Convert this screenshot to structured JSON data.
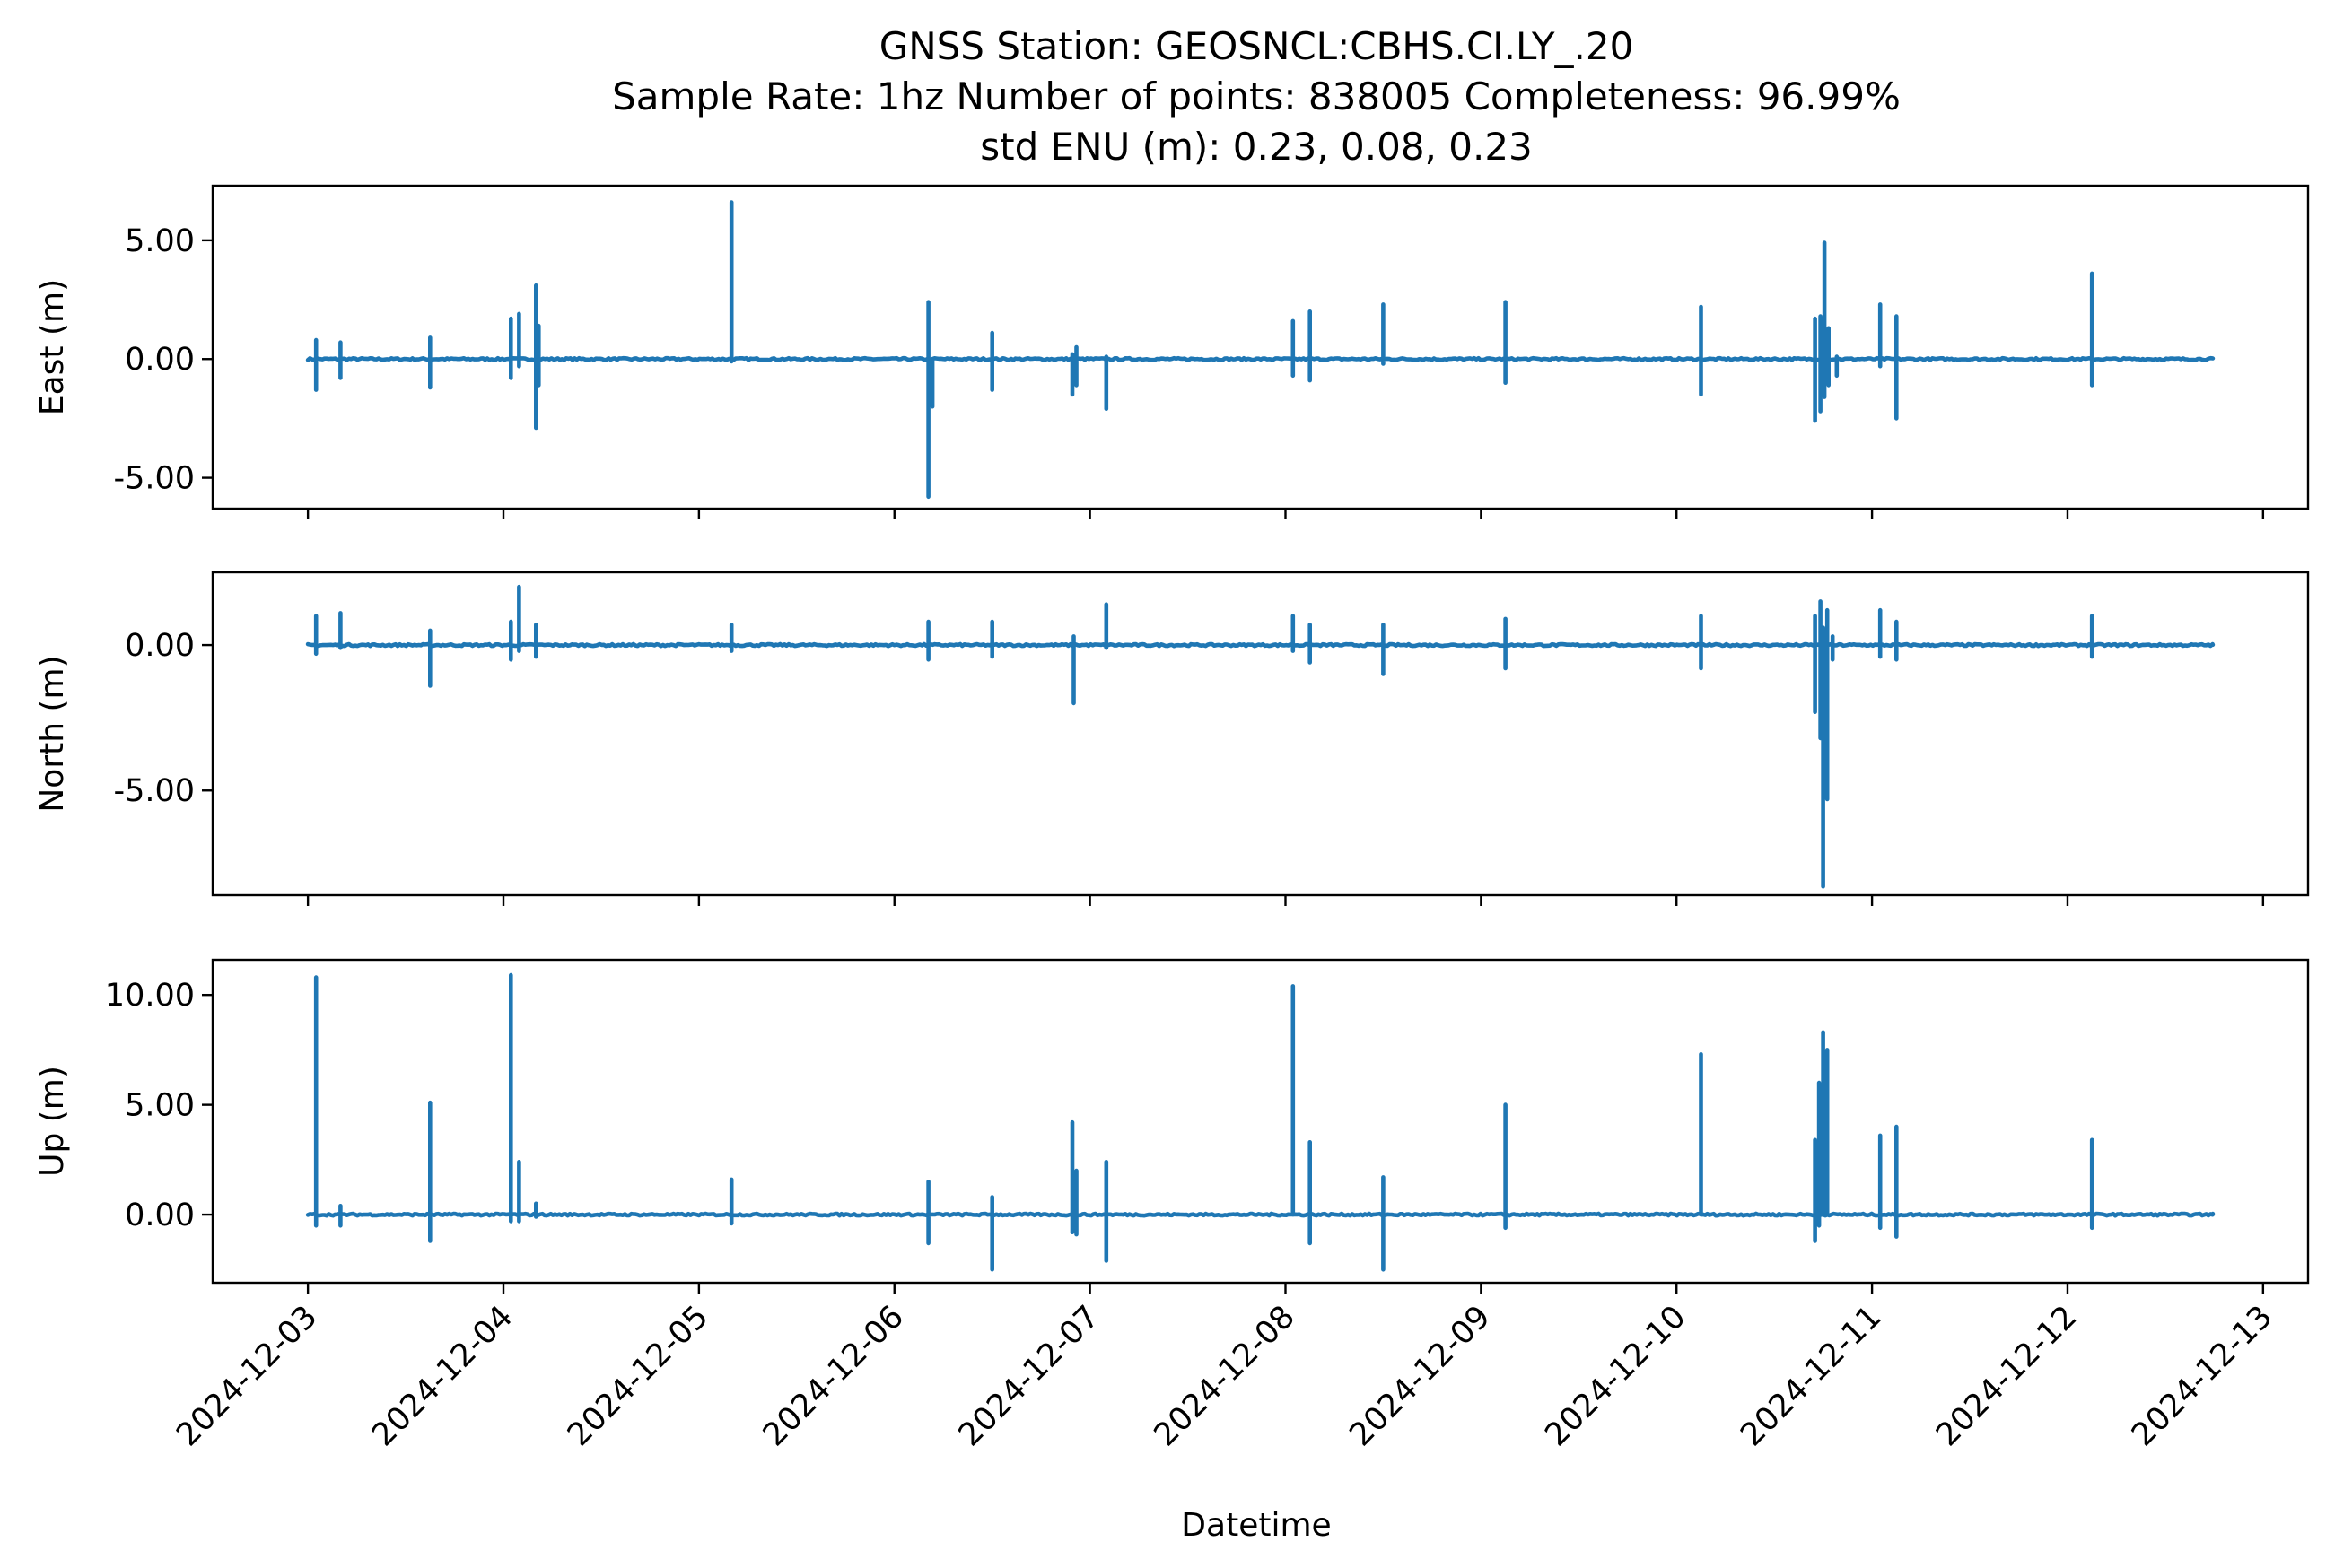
{
  "chart_data": {
    "type": "line",
    "title": [
      "GNSS Station: GEOSNCL:CBHS.CI.LY_.20",
      "Sample Rate: 1hz   Number of points: 838005    Completeness:  96.99%",
      "std ENU (m):  0.23, 0.08, 0.23"
    ],
    "xlabel": "Datetime",
    "x_range": [
      "2024-12-03",
      "2024-12-13"
    ],
    "x_ticks": [
      "2024-12-03",
      "2024-12-04",
      "2024-12-05",
      "2024-12-06",
      "2024-12-07",
      "2024-12-08",
      "2024-12-09",
      "2024-12-10",
      "2024-12-11",
      "2024-12-12",
      "2024-12-13"
    ],
    "data_x_range": [
      "2024-12-03T00:00",
      "2024-12-12T17:50"
    ],
    "grid": false,
    "line_color": "#1f77b4",
    "subplots": [
      {
        "ylabel": "East (m)",
        "ylim": [
          -6.3,
          7.3
        ],
        "y_ticks": [
          5,
          0,
          -5
        ],
        "y_tick_labels": [
          "5.00",
          "0.00",
          "-5.00"
        ],
        "spikes": [
          {
            "t": "2024-12-03T01:00",
            "min": -1.3,
            "max": 0.8
          },
          {
            "t": "2024-12-03T04:00",
            "min": -0.8,
            "max": 0.7
          },
          {
            "t": "2024-12-03T15:00",
            "min": -1.2,
            "max": 0.9
          },
          {
            "t": "2024-12-04T00:55",
            "min": -0.8,
            "max": 1.7
          },
          {
            "t": "2024-12-04T01:55",
            "min": -0.3,
            "max": 1.9
          },
          {
            "t": "2024-12-04T04:00",
            "min": -2.9,
            "max": 3.1
          },
          {
            "t": "2024-12-04T04:20",
            "min": -1.1,
            "max": 1.4
          },
          {
            "t": "2024-12-05T04:00",
            "min": -0.1,
            "max": 6.6
          },
          {
            "t": "2024-12-06T04:10",
            "min": -5.8,
            "max": 2.4
          },
          {
            "t": "2024-12-06T04:40",
            "min": -2.0,
            "max": -0.2
          },
          {
            "t": "2024-12-06T12:00",
            "min": -1.3,
            "max": 1.1
          },
          {
            "t": "2024-12-06T21:50",
            "min": -1.5,
            "max": 0.2
          },
          {
            "t": "2024-12-06T22:20",
            "min": -1.1,
            "max": 0.5
          },
          {
            "t": "2024-12-07T02:00",
            "min": -2.1,
            "max": 0.1
          },
          {
            "t": "2024-12-08T00:55",
            "min": -0.7,
            "max": 1.6
          },
          {
            "t": "2024-12-08T03:00",
            "min": -0.9,
            "max": 2.0
          },
          {
            "t": "2024-12-08T12:00",
            "min": -0.2,
            "max": 2.3
          },
          {
            "t": "2024-12-09T03:00",
            "min": -1.0,
            "max": 2.4
          },
          {
            "t": "2024-12-10T03:00",
            "min": -1.5,
            "max": 2.2
          },
          {
            "t": "2024-12-10T17:00",
            "min": -2.6,
            "max": 1.7
          },
          {
            "t": "2024-12-10T17:40",
            "min": -2.2,
            "max": 1.8
          },
          {
            "t": "2024-12-10T18:10",
            "min": -1.6,
            "max": 4.9
          },
          {
            "t": "2024-12-10T18:40",
            "min": -1.1,
            "max": 1.3
          },
          {
            "t": "2024-12-10T19:40",
            "min": -0.7,
            "max": 0.1
          },
          {
            "t": "2024-12-11T01:00",
            "min": -0.3,
            "max": 2.3
          },
          {
            "t": "2024-12-11T03:00",
            "min": -2.5,
            "max": 1.8
          },
          {
            "t": "2024-12-12T03:00",
            "min": -1.1,
            "max": 3.6
          }
        ]
      },
      {
        "ylabel": "North (m)",
        "ylim": [
          -8.6,
          2.5
        ],
        "y_ticks": [
          0,
          -5
        ],
        "y_tick_labels": [
          "0.00",
          "-5.00"
        ],
        "spikes": [
          {
            "t": "2024-12-03T01:00",
            "min": -0.3,
            "max": 1.0
          },
          {
            "t": "2024-12-03T04:00",
            "min": -0.1,
            "max": 1.1
          },
          {
            "t": "2024-12-03T15:00",
            "min": -1.4,
            "max": 0.5
          },
          {
            "t": "2024-12-04T00:55",
            "min": -0.5,
            "max": 0.8
          },
          {
            "t": "2024-12-04T01:55",
            "min": -0.2,
            "max": 2.0
          },
          {
            "t": "2024-12-04T04:00",
            "min": -0.4,
            "max": 0.7
          },
          {
            "t": "2024-12-05T04:00",
            "min": -0.2,
            "max": 0.7
          },
          {
            "t": "2024-12-06T04:10",
            "min": -0.5,
            "max": 0.8
          },
          {
            "t": "2024-12-06T12:00",
            "min": -0.4,
            "max": 0.8
          },
          {
            "t": "2024-12-06T22:00",
            "min": -2.0,
            "max": 0.3
          },
          {
            "t": "2024-12-07T02:00",
            "min": -0.1,
            "max": 1.4
          },
          {
            "t": "2024-12-08T00:55",
            "min": -0.2,
            "max": 1.0
          },
          {
            "t": "2024-12-08T03:00",
            "min": -0.6,
            "max": 0.7
          },
          {
            "t": "2024-12-08T12:00",
            "min": -1.0,
            "max": 0.7
          },
          {
            "t": "2024-12-09T03:00",
            "min": -0.8,
            "max": 0.9
          },
          {
            "t": "2024-12-10T03:00",
            "min": -0.8,
            "max": 1.0
          },
          {
            "t": "2024-12-10T17:00",
            "min": -2.3,
            "max": 1.0
          },
          {
            "t": "2024-12-10T17:40",
            "min": -3.2,
            "max": 1.5
          },
          {
            "t": "2024-12-10T18:00",
            "min": -8.3,
            "max": 0.6
          },
          {
            "t": "2024-12-10T18:30",
            "min": -5.3,
            "max": 1.2
          },
          {
            "t": "2024-12-10T19:10",
            "min": -0.5,
            "max": 0.3
          },
          {
            "t": "2024-12-11T01:00",
            "min": -0.4,
            "max": 1.2
          },
          {
            "t": "2024-12-11T03:00",
            "min": -0.5,
            "max": 0.8
          },
          {
            "t": "2024-12-12T03:00",
            "min": -0.4,
            "max": 1.0
          }
        ]
      },
      {
        "ylabel": "Up (m)",
        "ylim": [
          -3.1,
          11.6
        ],
        "y_ticks": [
          10,
          5,
          0
        ],
        "y_tick_labels": [
          "10.00",
          "5.00",
          "0.00"
        ],
        "spikes": [
          {
            "t": "2024-12-03T01:00",
            "min": -0.5,
            "max": 10.8
          },
          {
            "t": "2024-12-03T04:00",
            "min": -0.5,
            "max": 0.4
          },
          {
            "t": "2024-12-03T15:00",
            "min": -1.2,
            "max": 5.1
          },
          {
            "t": "2024-12-04T00:55",
            "min": -0.3,
            "max": 10.9
          },
          {
            "t": "2024-12-04T01:55",
            "min": -0.3,
            "max": 2.4
          },
          {
            "t": "2024-12-04T04:00",
            "min": -0.1,
            "max": 0.5
          },
          {
            "t": "2024-12-05T04:00",
            "min": -0.4,
            "max": 1.6
          },
          {
            "t": "2024-12-06T04:10",
            "min": -1.3,
            "max": 1.5
          },
          {
            "t": "2024-12-06T12:00",
            "min": -2.5,
            "max": 0.8
          },
          {
            "t": "2024-12-06T21:50",
            "min": -0.8,
            "max": 4.2
          },
          {
            "t": "2024-12-06T22:20",
            "min": -0.9,
            "max": 2.0
          },
          {
            "t": "2024-12-07T02:00",
            "min": -2.1,
            "max": 2.4
          },
          {
            "t": "2024-12-08T00:55",
            "min": 0.0,
            "max": 10.4
          },
          {
            "t": "2024-12-08T03:00",
            "min": -1.3,
            "max": 3.3
          },
          {
            "t": "2024-12-08T12:00",
            "min": -2.5,
            "max": 1.7
          },
          {
            "t": "2024-12-09T03:00",
            "min": -0.6,
            "max": 5.0
          },
          {
            "t": "2024-12-10T03:00",
            "min": 0.0,
            "max": 7.3
          },
          {
            "t": "2024-12-10T17:00",
            "min": -1.2,
            "max": 3.4
          },
          {
            "t": "2024-12-10T17:30",
            "min": -0.5,
            "max": 6.0
          },
          {
            "t": "2024-12-10T18:00",
            "min": 0.2,
            "max": 8.3
          },
          {
            "t": "2024-12-10T18:30",
            "min": 0.2,
            "max": 7.5
          },
          {
            "t": "2024-12-11T01:00",
            "min": -0.6,
            "max": 3.6
          },
          {
            "t": "2024-12-11T03:00",
            "min": -1.0,
            "max": 4.0
          },
          {
            "t": "2024-12-12T03:00",
            "min": -0.6,
            "max": 3.4
          }
        ]
      }
    ]
  }
}
